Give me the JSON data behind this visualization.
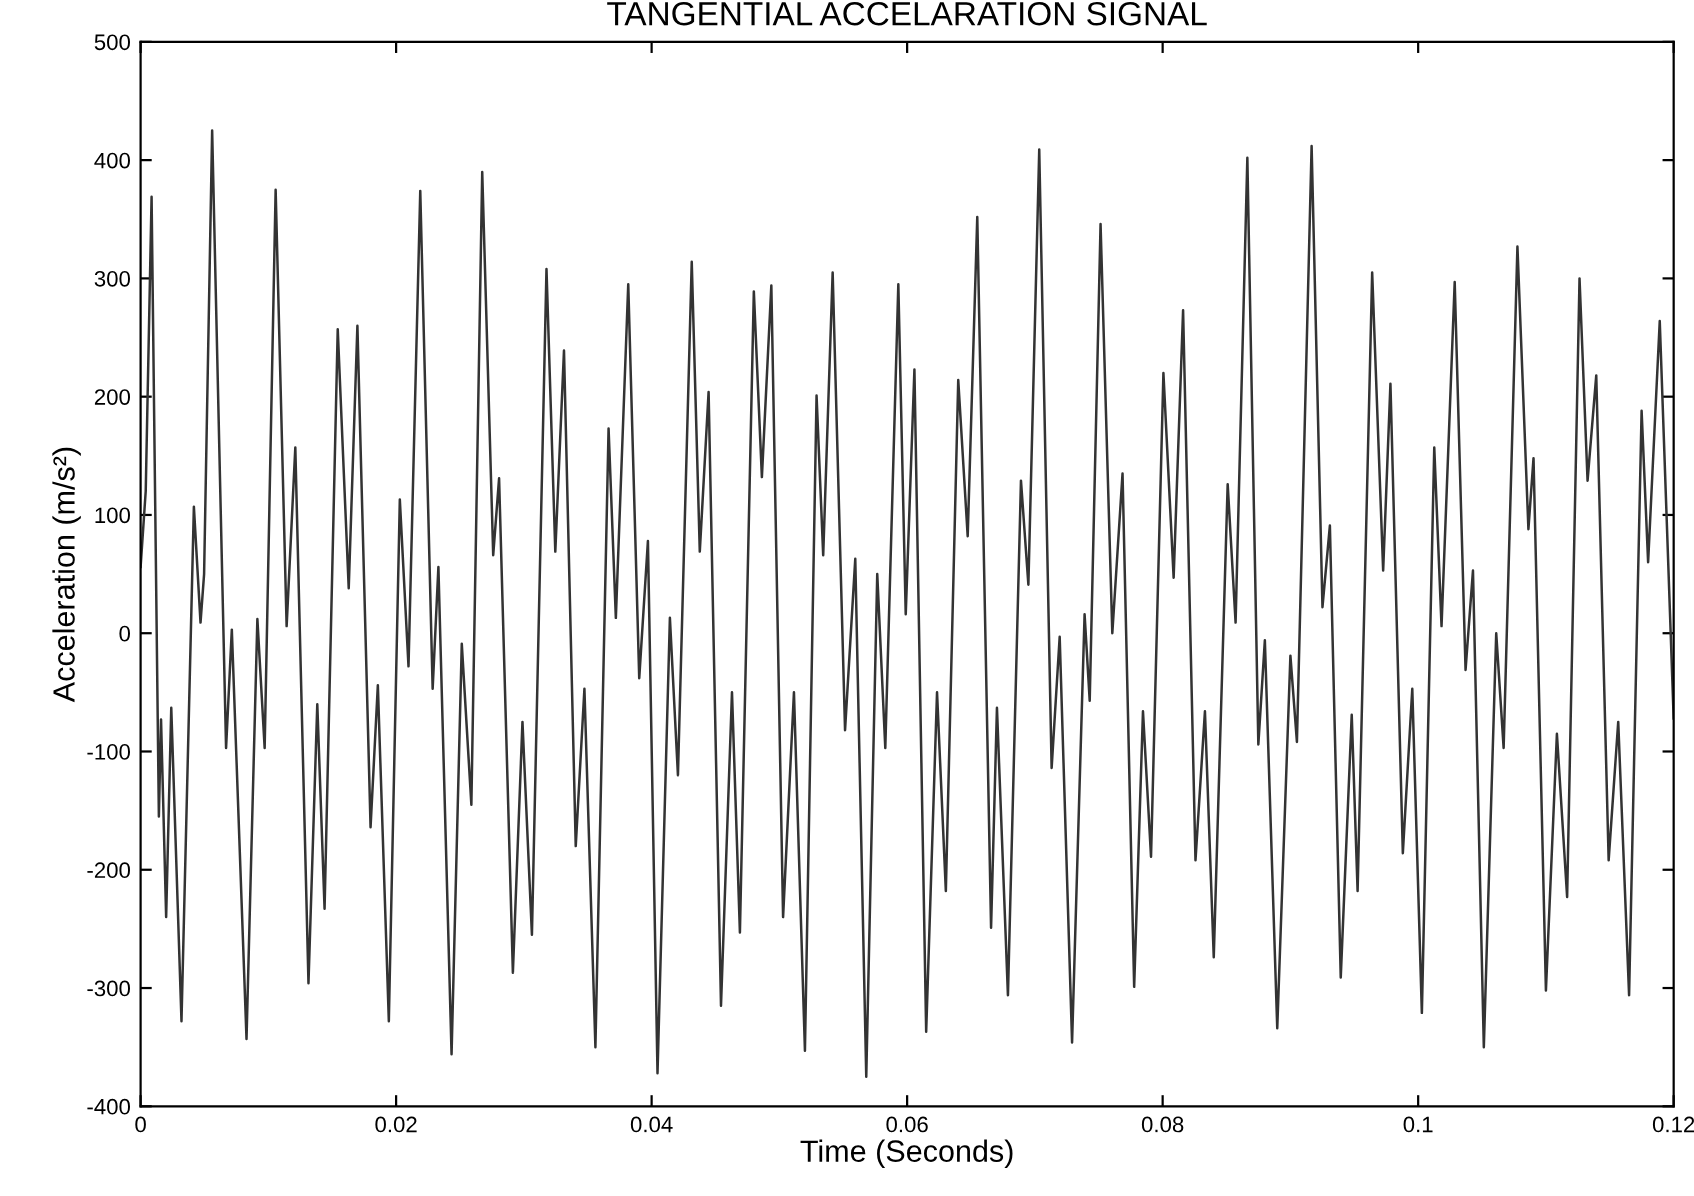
{
  "chart_data": {
    "type": "line",
    "title": "TANGENTIAL ACCELARATION SIGNAL",
    "xlabel": "Time (Seconds)",
    "ylabel": "Acceleration (m/s²)",
    "xlim": [
      0,
      0.12
    ],
    "ylim": [
      -400,
      500
    ],
    "xticks": [
      0,
      0.02,
      0.04,
      0.06,
      0.08,
      {
        "value": 0.1,
        "label": "0.1"
      },
      0.12
    ],
    "yticks": [
      -400,
      -300,
      -200,
      -100,
      0,
      100,
      200,
      300,
      400,
      500
    ],
    "grid": false,
    "legend": false,
    "marker": "none",
    "line_style": "solid",
    "series": [
      {
        "color": "#333333",
        "x": [
          0,
          0.0004,
          0.00086,
          0.00143,
          0.0016,
          0.002,
          0.0024,
          0.0032,
          0.00417,
          0.00469,
          0.00497,
          0.0056,
          0.00669,
          0.00714,
          0.00829,
          0.00914,
          0.00971,
          0.01057,
          0.01143,
          0.01211,
          0.01314,
          0.01383,
          0.0144,
          0.01543,
          0.01629,
          0.01697,
          0.018,
          0.01857,
          0.01943,
          0.02029,
          0.02097,
          0.02189,
          0.02286,
          0.02331,
          0.02434,
          0.02514,
          0.02589,
          0.02674,
          0.0276,
          0.02806,
          0.02914,
          0.02989,
          0.03063,
          0.03177,
          0.03246,
          0.03314,
          0.03406,
          0.03474,
          0.0356,
          0.03663,
          0.0372,
          0.03817,
          0.03903,
          0.03971,
          0.04046,
          0.04143,
          0.04206,
          0.04314,
          0.04377,
          0.04446,
          0.04543,
          0.04629,
          0.04691,
          0.048,
          0.04863,
          0.04937,
          0.05029,
          0.05114,
          0.052,
          0.05291,
          0.05343,
          0.05417,
          0.05514,
          0.05594,
          0.0568,
          0.05766,
          0.05829,
          0.05931,
          0.05989,
          0.06057,
          0.06149,
          0.06234,
          0.06303,
          0.064,
          0.06474,
          0.06549,
          0.06657,
          0.06703,
          0.06789,
          0.06891,
          0.06949,
          0.07034,
          0.07131,
          0.07194,
          0.07291,
          0.07389,
          0.07429,
          0.07514,
          0.07606,
          0.07686,
          0.07777,
          0.07846,
          0.07909,
          0.08006,
          0.08086,
          0.0816,
          0.08257,
          0.08331,
          0.084,
          0.08509,
          0.08571,
          0.08663,
          0.08749,
          0.088,
          0.08897,
          0.09,
          0.09051,
          0.09166,
          0.09251,
          0.09309,
          0.09394,
          0.0948,
          0.09526,
          0.0964,
          0.09726,
          0.09783,
          0.0988,
          0.09954,
          0.10029,
          0.10126,
          0.10183,
          0.10286,
          0.10371,
          0.10429,
          0.10514,
          0.10611,
          0.10669,
          0.10777,
          0.10863,
          0.10903,
          0.11,
          0.11086,
          0.11166,
          0.11263,
          0.11326,
          0.11394,
          0.11491,
          0.11566,
          0.11651,
          0.11749,
          0.118,
          0.11891,
          0.12
        ],
        "values": [
          56,
          120,
          369,
          -155,
          -73,
          -240,
          -63,
          -328,
          107,
          9,
          50,
          425,
          -97,
          3,
          -343,
          12,
          -97,
          375,
          6,
          157,
          -296,
          -60,
          -233,
          257,
          38,
          260,
          -164,
          -44,
          -328,
          113,
          -28,
          374,
          -47,
          56,
          -356,
          -9,
          -145,
          390,
          66,
          131,
          -287,
          -75,
          -255,
          308,
          69,
          239,
          -180,
          -47,
          -350,
          173,
          13,
          295,
          -38,
          78,
          -372,
          13,
          -120,
          314,
          69,
          204,
          -315,
          -50,
          -253,
          289,
          132,
          294,
          -240,
          -50,
          -353,
          201,
          66,
          305,
          -82,
          63,
          -375,
          50,
          -97,
          295,
          16,
          223,
          -337,
          -50,
          -218,
          214,
          82,
          352,
          -249,
          -63,
          -306,
          129,
          41,
          409,
          -114,
          -3,
          -346,
          16,
          -57,
          346,
          0,
          135,
          -299,
          -66,
          -189,
          220,
          47,
          273,
          -192,
          -66,
          -274,
          126,
          9,
          402,
          -94,
          -6,
          -334,
          -19,
          -92,
          412,
          22,
          91,
          -291,
          -69,
          -218,
          305,
          53,
          211,
          -186,
          -47,
          -321,
          157,
          6,
          297,
          -31,
          53,
          -350,
          0,
          -97,
          327,
          88,
          148,
          -302,
          -85,
          -223,
          300,
          129,
          218,
          -192,
          -75,
          -306,
          188,
          60,
          264,
          -72
        ]
      }
    ]
  }
}
